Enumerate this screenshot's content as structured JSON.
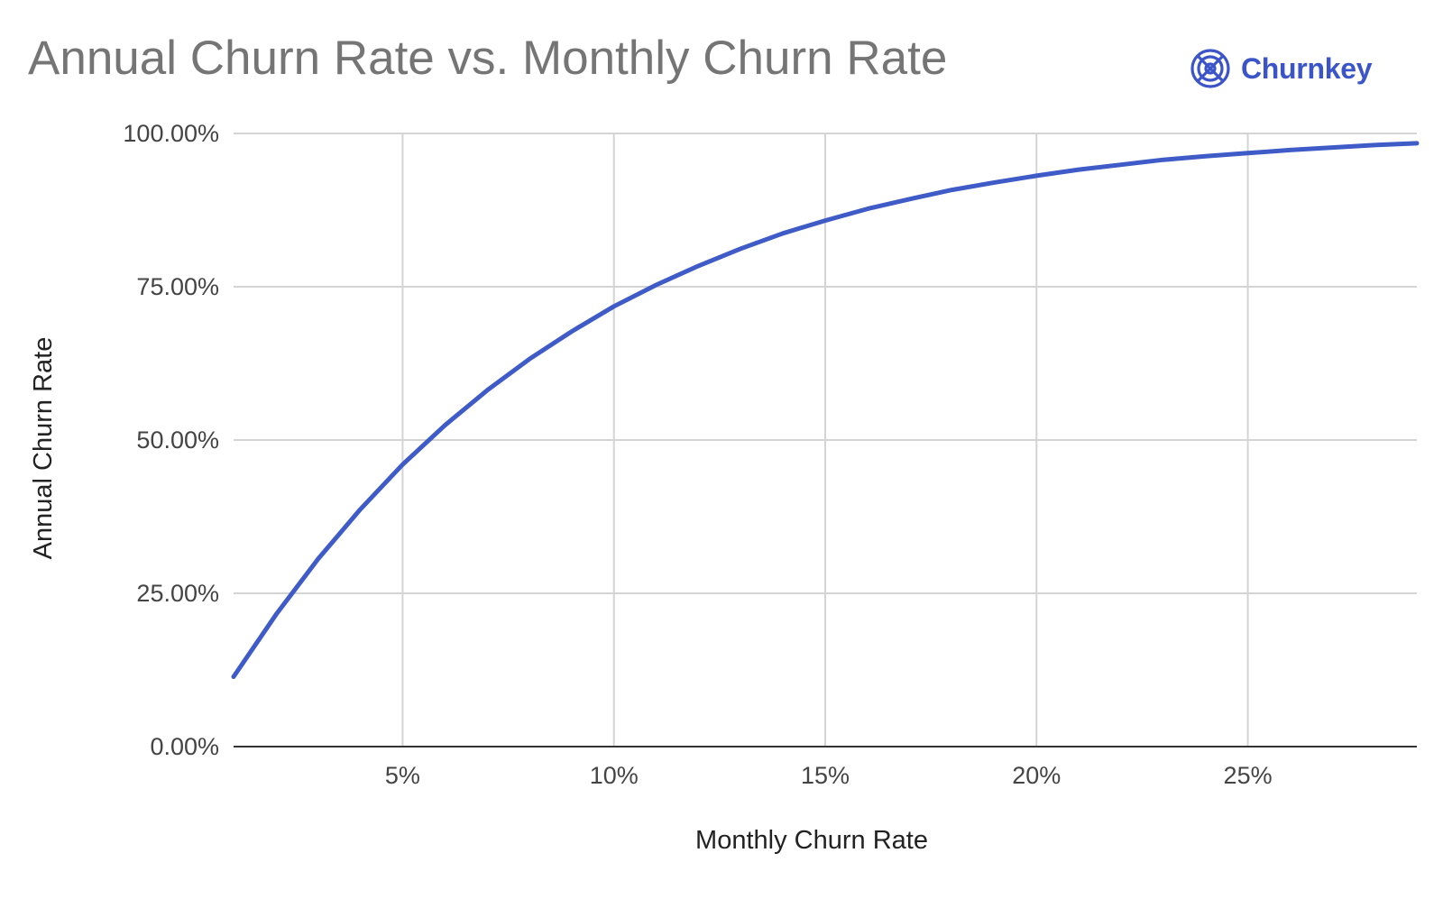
{
  "brand": {
    "name": "Churnkey",
    "logo_icon": "churnkey-logo-icon",
    "color": "#3b55c9"
  },
  "chart_data": {
    "type": "line",
    "title": "Annual Churn Rate vs. Monthly Churn Rate",
    "xlabel": "Monthly Churn Rate",
    "ylabel": "Annual Churn Rate",
    "xlim": [
      1,
      29
    ],
    "ylim": [
      0,
      100
    ],
    "x_ticks": [
      5,
      10,
      15,
      20,
      25
    ],
    "x_tick_labels": [
      "5%",
      "10%",
      "15%",
      "20%",
      "25%"
    ],
    "y_ticks": [
      0,
      25,
      50,
      75,
      100
    ],
    "y_tick_labels": [
      "0.00%",
      "25.00%",
      "50.00%",
      "75.00%",
      "100.00%"
    ],
    "grid": true,
    "line_color": "#3f5bc8",
    "series": [
      {
        "x": [
          1,
          2,
          3,
          4,
          5,
          6,
          7,
          8,
          9,
          10,
          11,
          12,
          13,
          14,
          15,
          16,
          17,
          18,
          19,
          20,
          21,
          22,
          23,
          24,
          25,
          26,
          27,
          28,
          29
        ],
        "values": [
          11.4,
          21.5,
          30.6,
          38.7,
          46.0,
          52.4,
          58.1,
          63.2,
          67.7,
          71.8,
          75.3,
          78.4,
          81.2,
          83.7,
          85.8,
          87.7,
          89.3,
          90.8,
          92.0,
          93.1,
          94.1,
          94.9,
          95.7,
          96.3,
          96.8,
          97.3,
          97.7,
          98.1,
          98.4
        ]
      }
    ]
  }
}
